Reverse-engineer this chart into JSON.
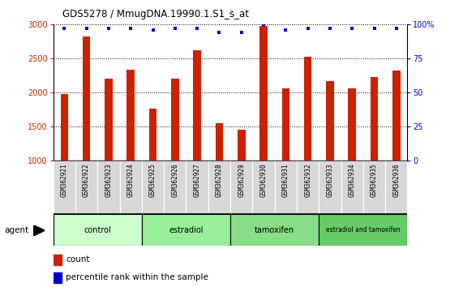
{
  "title": "GDS5278 / MmugDNA.19990.1.S1_s_at",
  "samples": [
    "GSM362921",
    "GSM362922",
    "GSM362923",
    "GSM362924",
    "GSM362925",
    "GSM362926",
    "GSM362927",
    "GSM362928",
    "GSM362929",
    "GSM362930",
    "GSM362931",
    "GSM362932",
    "GSM362933",
    "GSM362934",
    "GSM362935",
    "GSM362936"
  ],
  "counts": [
    1980,
    2820,
    2200,
    2340,
    1760,
    2210,
    2620,
    1550,
    1450,
    2980,
    2060,
    2530,
    2170,
    2060,
    2230,
    2320
  ],
  "percentile_ranks": [
    97,
    97,
    97,
    97,
    96,
    97,
    97,
    94,
    94,
    100,
    96,
    97,
    97,
    97,
    97,
    97
  ],
  "groups": [
    {
      "label": "control",
      "start": 0,
      "end": 4,
      "color": "#ccffcc"
    },
    {
      "label": "estradiol",
      "start": 4,
      "end": 8,
      "color": "#99ee99"
    },
    {
      "label": "tamoxifen",
      "start": 8,
      "end": 12,
      "color": "#88dd88"
    },
    {
      "label": "estradiol and tamoxifen",
      "start": 12,
      "end": 16,
      "color": "#66cc66"
    }
  ],
  "bar_color": "#cc2200",
  "dot_color": "#0000cc",
  "ylim": [
    1000,
    3000
  ],
  "y2lim": [
    0,
    100
  ],
  "yticks": [
    1000,
    1500,
    2000,
    2500,
    3000
  ],
  "y2ticks": [
    0,
    25,
    50,
    75,
    100
  ],
  "agent_label": "agent",
  "legend_count": "count",
  "legend_percentile": "percentile rank within the sample",
  "plot_bg": "#ffffff",
  "label_bg": "#d8d8d8"
}
